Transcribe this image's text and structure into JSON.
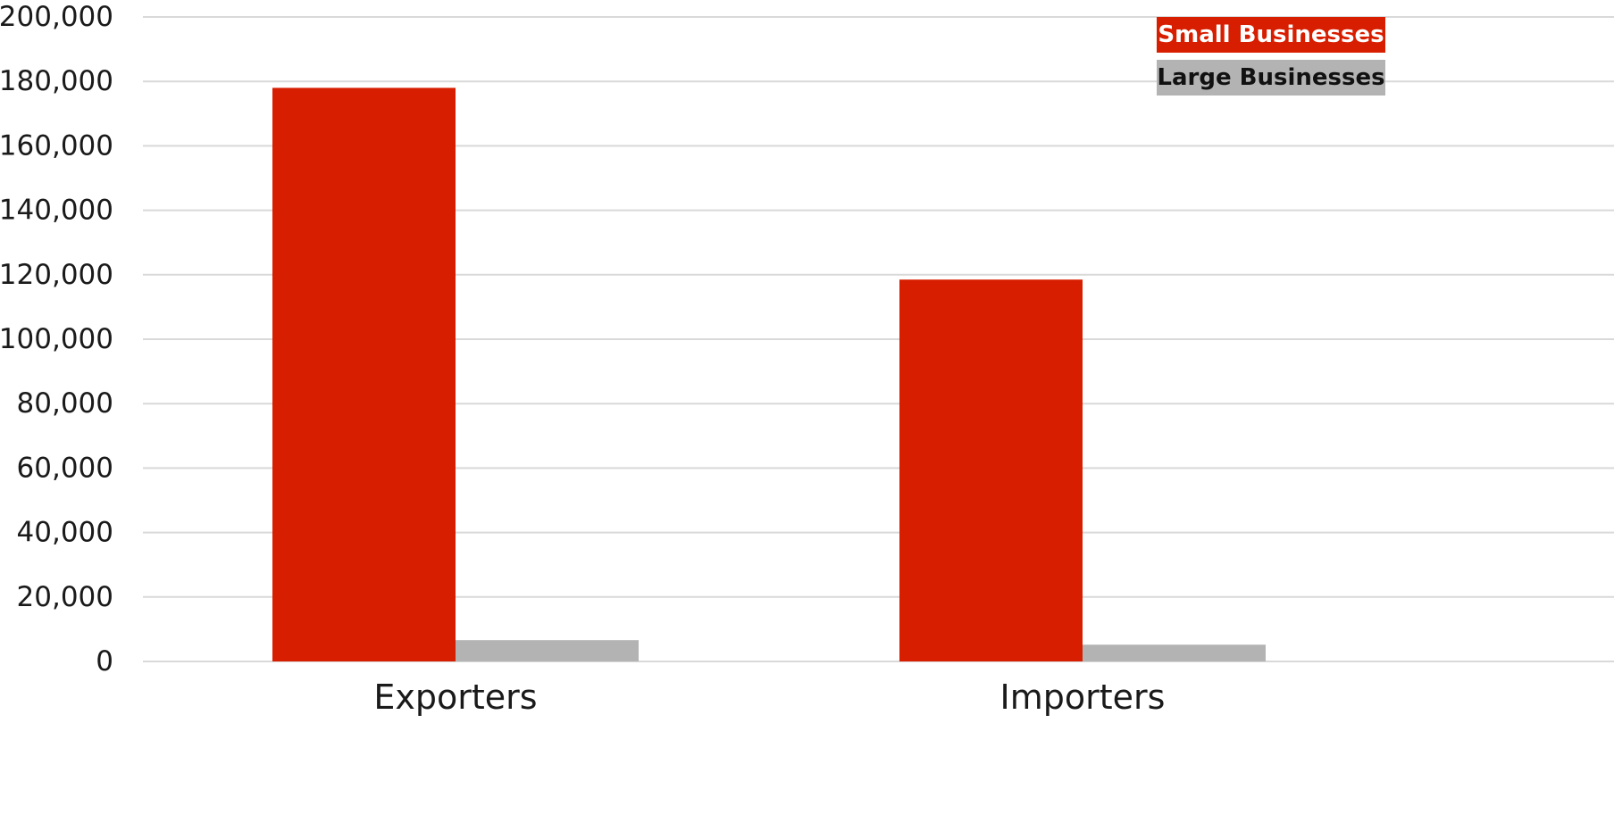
{
  "chart_data": {
    "type": "bar",
    "title": "",
    "xlabel": "",
    "ylabel": "",
    "categories": [
      "Exporters",
      "Importers"
    ],
    "series": [
      {
        "name": "Small Businesses",
        "color": "#d71e00",
        "values": [
          178000,
          118500
        ]
      },
      {
        "name": "Large Businesses",
        "color": "#b3b3b3",
        "values": [
          6600,
          5200
        ]
      }
    ],
    "ylim": [
      0,
      200000
    ],
    "yticks": [
      0,
      20000,
      40000,
      60000,
      80000,
      100000,
      120000,
      140000,
      160000,
      180000,
      200000
    ],
    "ytick_labels": [
      "0",
      "20,000",
      "40,000",
      "60,000",
      "80,000",
      "100,000",
      "120,000",
      "140,000",
      "160,000",
      "180,000",
      "200,000"
    ],
    "grid": true,
    "legend": {
      "position": "top-right",
      "entries": [
        {
          "label": "Small Businesses",
          "color": "#d71e00",
          "text_color": "#ffffff"
        },
        {
          "label": "Large Businesses",
          "color": "#b3b3b3",
          "text_color": "#111111"
        }
      ]
    }
  }
}
